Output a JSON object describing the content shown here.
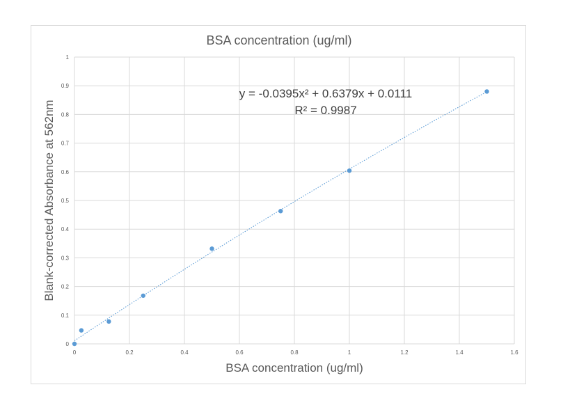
{
  "chart_data": {
    "type": "scatter",
    "title": "BSA concentration (ug/ml)",
    "xlabel": "BSA concentration (ug/ml)",
    "ylabel": "Blank-corrected  Absorbance at 562nm",
    "xlim": [
      0,
      1.6
    ],
    "ylim": [
      0,
      1
    ],
    "x_ticks": [
      "0",
      "0.2",
      "0.4",
      "0.6",
      "0.8",
      "1",
      "1.2",
      "1.4",
      "1.6"
    ],
    "y_ticks": [
      "0",
      "0.1",
      "0.2",
      "0.3",
      "0.4",
      "0.5",
      "0.6",
      "0.7",
      "0.8",
      "0.9",
      "1"
    ],
    "grid": true,
    "legend": "none",
    "series": [
      {
        "x": [
          0,
          0.025,
          0.125,
          0.25,
          0.5,
          0.75,
          1.0,
          1.5
        ],
        "y": [
          0,
          0.047,
          0.078,
          0.168,
          0.332,
          0.463,
          0.604,
          0.88
        ],
        "color": "#5b9bd5"
      }
    ],
    "trendline": {
      "kind": "polynomial",
      "coefficients": [
        -0.0395,
        0.6379,
        0.0111
      ],
      "x_range": [
        0,
        1.5
      ],
      "style": "dotted",
      "color": "#5b9bd5"
    },
    "annotations": {
      "equation": "y = -0.0395x² + 0.6379x + 0.0111",
      "r_squared": "R² = 0.9987"
    }
  }
}
